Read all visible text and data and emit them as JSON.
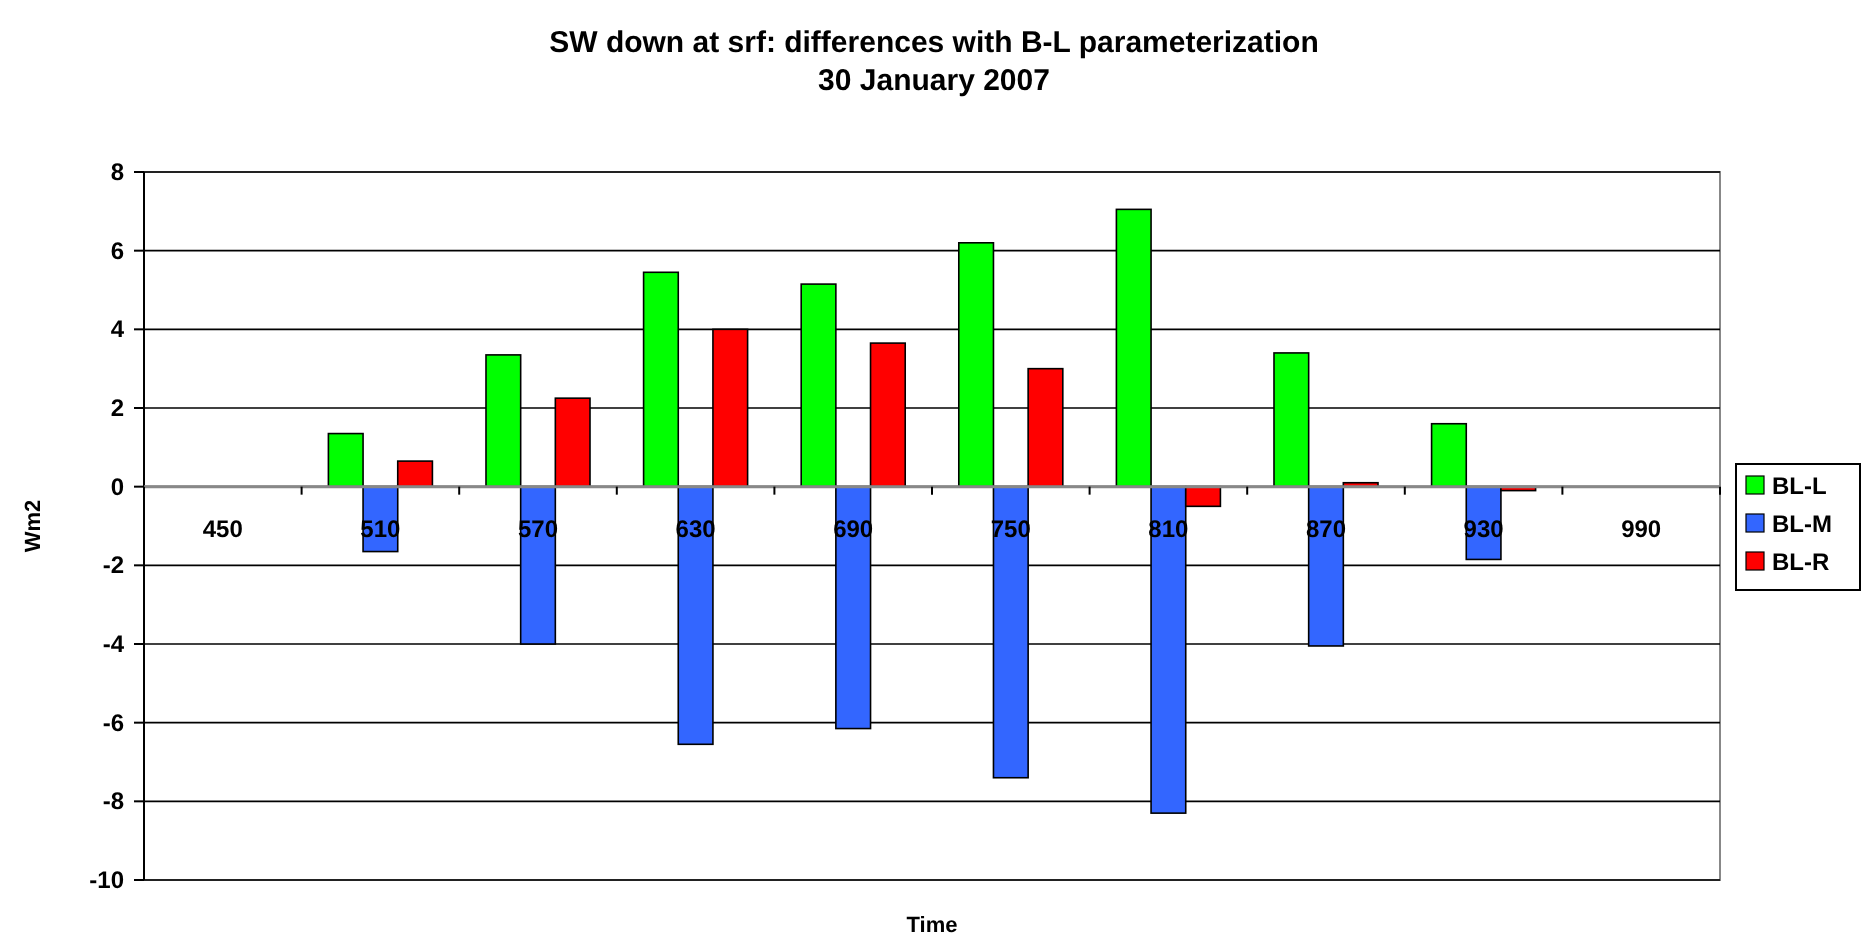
{
  "chart_data": {
    "type": "bar",
    "title": "SW down at srf: differences with B-L parameterization",
    "subtitle": "30 January 2007",
    "xlabel": "Time",
    "ylabel": "Wm2",
    "categories": [
      "450",
      "510",
      "570",
      "630",
      "690",
      "750",
      "810",
      "870",
      "930",
      "990"
    ],
    "series": [
      {
        "name": "BL-L",
        "color": "#00ff00",
        "values": [
          null,
          1.35,
          3.35,
          5.45,
          5.15,
          6.2,
          7.05,
          3.4,
          1.6,
          null
        ]
      },
      {
        "name": "BL-M",
        "color": "#3366ff",
        "values": [
          null,
          -1.65,
          -4.0,
          -6.55,
          -6.15,
          -7.4,
          -8.3,
          -4.05,
          -1.85,
          null
        ]
      },
      {
        "name": "BL-R",
        "color": "#ff0000",
        "values": [
          null,
          0.65,
          2.25,
          4.0,
          3.65,
          3.0,
          -0.5,
          0.1,
          -0.1,
          null
        ]
      }
    ],
    "ylim": [
      -10,
      8
    ],
    "yticks": [
      -10,
      -8,
      -6,
      -4,
      -2,
      0,
      2,
      4,
      6,
      8
    ],
    "grid": "y",
    "legend": "right"
  }
}
